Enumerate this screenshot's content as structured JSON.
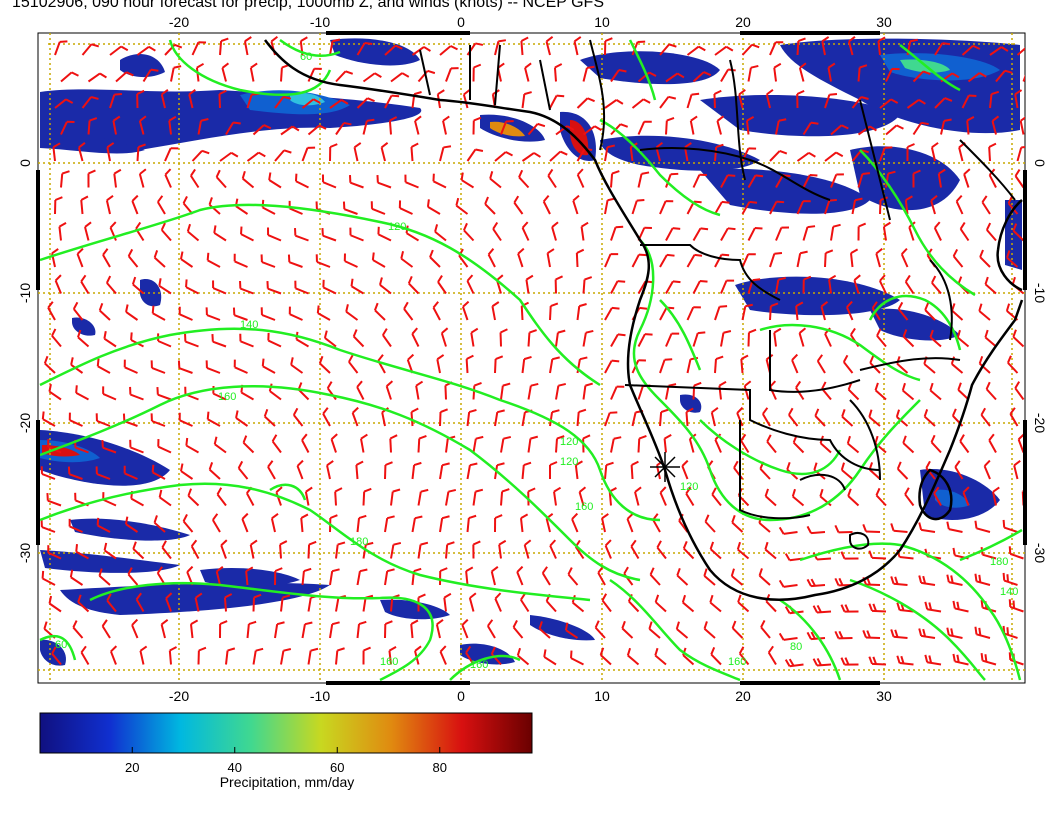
{
  "title": "15102906, 090 hour forecast for precip, 1000mb Z, and winds (knots) -- NCEP GFS",
  "map": {
    "lon_range": [
      -30,
      40
    ],
    "lat_range": [
      -40,
      10
    ],
    "lon_tick_labels": [
      "-20",
      "-10",
      "0",
      "10",
      "20",
      "30"
    ],
    "lat_tick_labels": [
      "0",
      "-10",
      "-20",
      "-30"
    ],
    "colors": {
      "contour": "#22ee22",
      "wind_barb": "#ee1111",
      "coastline": "#000000",
      "grid": "#c8a800"
    },
    "contour_labels": [
      "60",
      "120",
      "140",
      "160",
      "120",
      "120",
      "120",
      "160",
      "180",
      "160",
      "160",
      "80",
      "180",
      "60",
      "160",
      "140"
    ]
  },
  "colorbar": {
    "label": "Precipitation, mm/day",
    "ticks": [
      "20",
      "40",
      "60",
      "80"
    ],
    "colors": [
      "#101080",
      "#1030d0",
      "#00b8e0",
      "#40d890",
      "#c8d820",
      "#e08a10",
      "#d81010",
      "#6a0000"
    ]
  }
}
